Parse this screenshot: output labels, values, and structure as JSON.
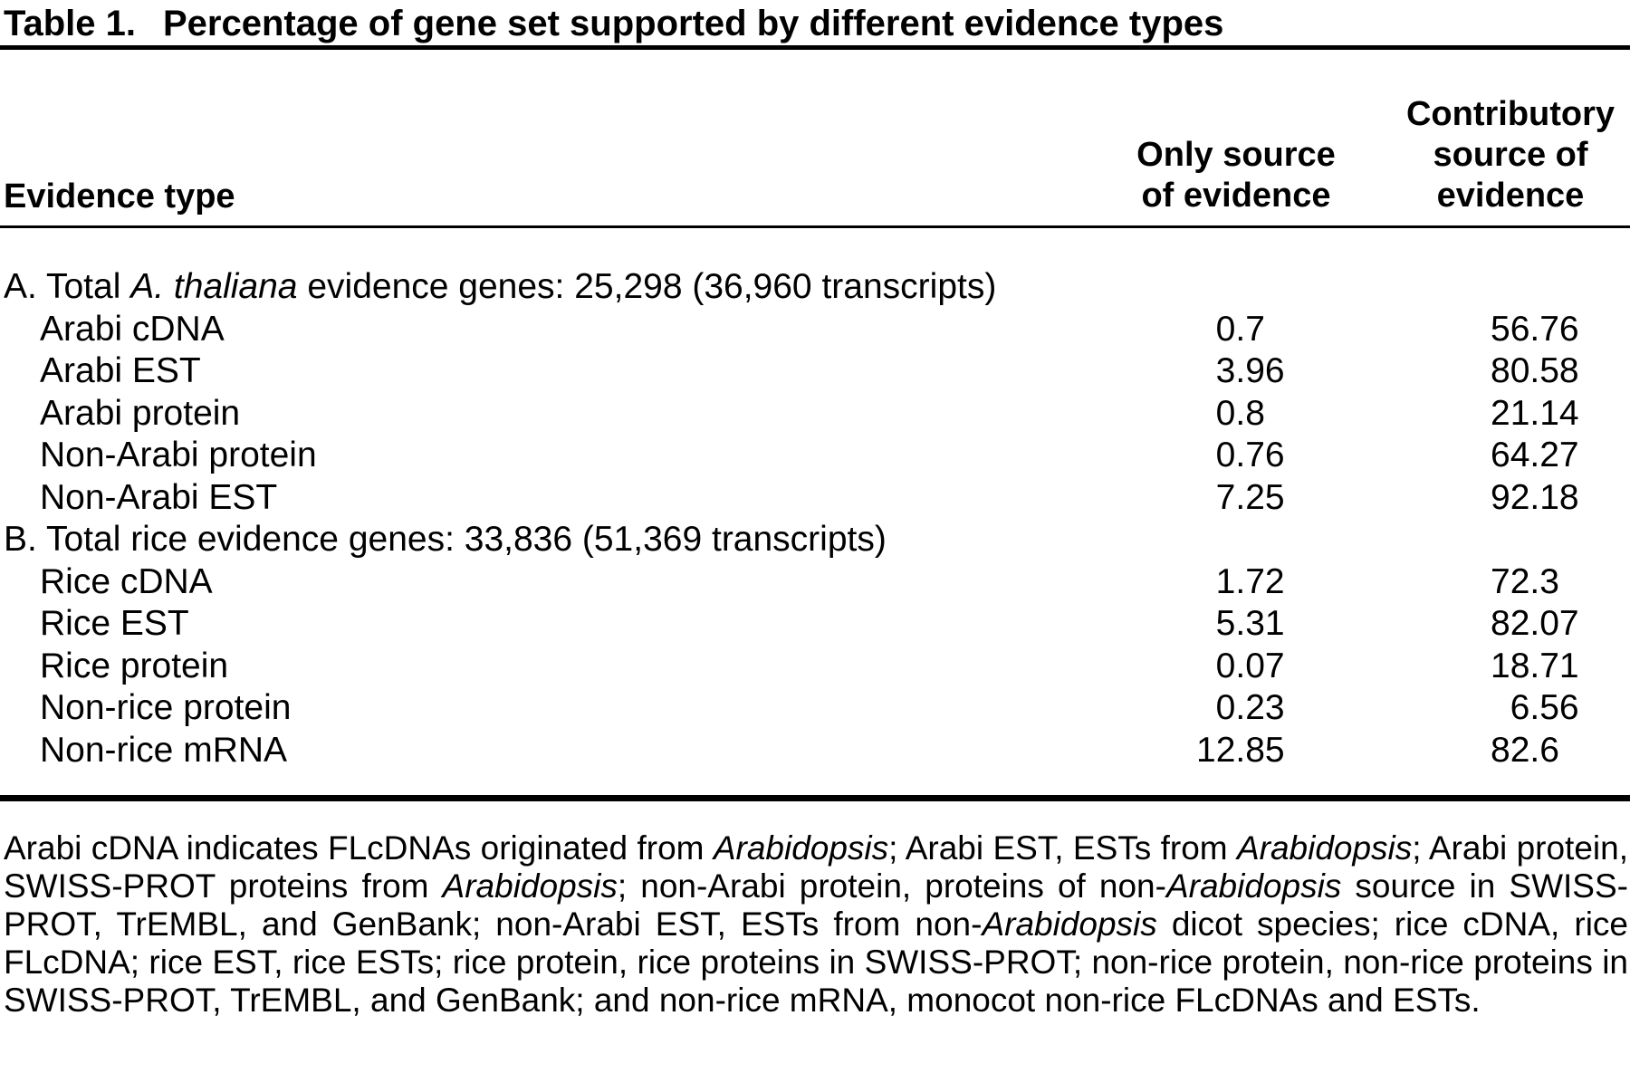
{
  "title": {
    "label": "Table 1.",
    "text": "Percentage of gene set supported by different evidence types"
  },
  "columns": {
    "evidence_type": "Evidence type",
    "only_source_lines": [
      "Only source",
      "of evidence"
    ],
    "contributory_lines": [
      "Contributory",
      "source of",
      "evidence"
    ]
  },
  "sections": [
    {
      "header_parts": {
        "prefix": "A. Total ",
        "italic": "A. thaliana",
        "suffix": " evidence genes: 25,298 (36,960 transcripts)"
      },
      "rows": [
        {
          "label": "Arabi cDNA",
          "only": "0.7",
          "contributory": "56.76"
        },
        {
          "label": "Arabi EST",
          "only": "3.96",
          "contributory": "80.58"
        },
        {
          "label": "Arabi protein",
          "only": "0.8",
          "contributory": "21.14"
        },
        {
          "label": "Non-Arabi protein",
          "only": "0.76",
          "contributory": "64.27"
        },
        {
          "label": "Non-Arabi EST",
          "only": "7.25",
          "contributory": "92.18"
        }
      ]
    },
    {
      "header_parts": {
        "prefix": "B. Total rice evidence genes: 33,836 (51,369 transcripts)",
        "italic": "",
        "suffix": ""
      },
      "rows": [
        {
          "label": "Rice cDNA",
          "only": "1.72",
          "contributory": "72.3"
        },
        {
          "label": "Rice EST",
          "only": "5.31",
          "contributory": "82.07"
        },
        {
          "label": "Rice protein",
          "only": "0.07",
          "contributory": "18.71"
        },
        {
          "label": "Non-rice protein",
          "only": "0.23",
          "contributory": "6.56"
        },
        {
          "label": "Non-rice mRNA",
          "only": "12.85",
          "contributory": "82.6"
        }
      ]
    }
  ],
  "footnote_segments": [
    {
      "t": "Arabi cDNA indicates FLcDNAs originated from ",
      "i": false
    },
    {
      "t": "Arabidopsis",
      "i": true
    },
    {
      "t": "; Arabi EST, ESTs from ",
      "i": false
    },
    {
      "t": "Arabidopsis",
      "i": true
    },
    {
      "t": "; Arabi protein, SWISS-PROT proteins from ",
      "i": false
    },
    {
      "t": "Arabidopsis",
      "i": true
    },
    {
      "t": "; non-Arabi protein, proteins of non-",
      "i": false
    },
    {
      "t": "Arabidopsis",
      "i": true
    },
    {
      "t": " source in SWISS-PROT, TrEMBL, and GenBank; non-Arabi EST, ESTs from non-",
      "i": false
    },
    {
      "t": "Arabidopsis",
      "i": true
    },
    {
      "t": " dicot species; rice cDNA, rice FLcDNA; rice EST, rice ESTs; rice protein, rice proteins in SWISS-PROT; non-rice protein, non-rice proteins in SWISS-PROT, TrEMBL, and GenBank; and non-rice mRNA, monocot non-rice FLcDNAs and ESTs.",
      "i": false
    }
  ],
  "colors": {
    "text": "#000000",
    "background": "#ffffff"
  }
}
